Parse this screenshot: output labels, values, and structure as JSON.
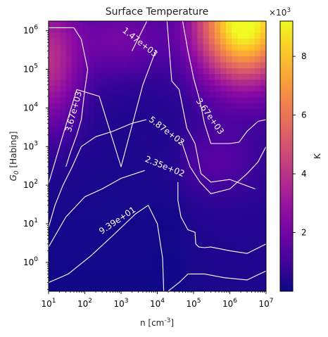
{
  "chart_data": {
    "type": "heatmap",
    "title": "Surface Temperature",
    "xlabel": "n [cm$^{-3}$]",
    "ylabel": "$G_0$ [Habing]",
    "x_scale": "log",
    "y_scale": "log",
    "xlim": [
      10,
      10000000
    ],
    "ylim": [
      0.178,
      1780000
    ],
    "x_ticks": [
      {
        "value": 10,
        "base": "10",
        "exp": "1"
      },
      {
        "value": 100,
        "base": "10",
        "exp": "2"
      },
      {
        "value": 1000,
        "base": "10",
        "exp": "3"
      },
      {
        "value": 10000,
        "base": "10",
        "exp": "4"
      },
      {
        "value": 100000,
        "base": "10",
        "exp": "5"
      },
      {
        "value": 1000000,
        "base": "10",
        "exp": "6"
      },
      {
        "value": 10000000,
        "base": "10",
        "exp": "7"
      }
    ],
    "y_ticks": [
      {
        "value": 1,
        "base": "10",
        "exp": "0"
      },
      {
        "value": 10,
        "base": "10",
        "exp": "1"
      },
      {
        "value": 100,
        "base": "10",
        "exp": "2"
      },
      {
        "value": 1000,
        "base": "10",
        "exp": "3"
      },
      {
        "value": 10000,
        "base": "10",
        "exp": "4"
      },
      {
        "value": 100000,
        "base": "10",
        "exp": "5"
      },
      {
        "value": 1000000,
        "base": "10",
        "exp": "6"
      }
    ],
    "colormap": "plasma",
    "colorbar": {
      "label": "K",
      "multiplier_base": "×10",
      "multiplier_exp": "3",
      "range": [
        0,
        9200
      ],
      "tick_values": [
        2000,
        4000,
        6000,
        8000
      ],
      "tick_labels": [
        "2",
        "4",
        "6",
        "8"
      ]
    },
    "contours": [
      {
        "level": 93.9,
        "label": "9.39e+01",
        "label_at": [
          800,
          12
        ],
        "label_angle": -34,
        "x": [
          10,
          35,
          150,
          600,
          2500,
          5600,
          10000,
          14000,
          15000
        ],
        "y": [
          0.3,
          0.5,
          1.5,
          5,
          18,
          30,
          10,
          1.3,
          0.18
        ]
      },
      {
        "level": 235,
        "label": "2.35e+02",
        "label_at": [
          16000,
          300
        ],
        "label_angle": 22,
        "x": [
          10,
          30,
          100,
          300,
          1000,
          4500
        ],
        "y": [
          2.5,
          15,
          50,
          80,
          150,
          240
        ]
      },
      {
        "level": 235,
        "label": "",
        "label_at": null,
        "label_angle": 0,
        "x": [
          37000,
          37000,
          45000,
          70000,
          110000,
          115000,
          140000,
          200000,
          300000,
          1000000,
          3000000,
          10000000
        ],
        "y": [
          120,
          40,
          15,
          7,
          6,
          3,
          2.5,
          2.4,
          2.5,
          2,
          1.7,
          3
        ]
      },
      {
        "level": 235,
        "label": "",
        "label_at": null,
        "label_angle": 0,
        "x": [
          20000,
          40000,
          70000,
          200000,
          700000,
          3000000,
          10000000
        ],
        "y": [
          0.18,
          0.3,
          0.5,
          0.5,
          0.4,
          0.35,
          0.6
        ]
      },
      {
        "level": 587,
        "label": "5.87e+02",
        "label_at": [
          18000,
          2500
        ],
        "label_angle": 37,
        "x": [
          10,
          15,
          25,
          45,
          80,
          200,
          600,
          2000,
          5000
        ],
        "y": [
          8,
          30,
          100,
          300,
          1000,
          1800,
          2500,
          4000,
          5000
        ]
      },
      {
        "level": 587,
        "label": "",
        "label_at": null,
        "label_angle": 0,
        "x": [
          45000,
          80000,
          150000,
          300000,
          1000000,
          3000000,
          6000000,
          10000000
        ],
        "y": [
          1500,
          300,
          120,
          60,
          80,
          200,
          400,
          1000
        ]
      },
      {
        "level": 1470,
        "label": "1.47e+03",
        "label_at": [
          3300,
          500000
        ],
        "label_angle": 38,
        "x": [
          10,
          25,
          60,
          250,
          1000,
          4000,
          9000
        ],
        "y": [
          110,
          2000,
          30000,
          20000,
          300,
          40000,
          300000
        ]
      },
      {
        "level": 1470,
        "label": "",
        "label_at": null,
        "label_angle": 0,
        "x": [
          2000,
          9000,
          16000,
          25000,
          40000,
          65000,
          110000,
          160000,
          300000,
          1000000,
          2000000,
          5000000
        ],
        "y": [
          300000,
          5000000,
          10000000,
          50000,
          30000,
          3000,
          1200,
          200,
          120,
          140,
          110,
          80
        ]
      },
      {
        "level": 3670,
        "label": "3.67e+03",
        "label_at": [
          50,
          8000
        ],
        "label_angle": -75,
        "x": [
          10,
          50,
          80,
          120,
          100,
          80,
          60,
          40,
          30
        ],
        "y": [
          1200000,
          1200000,
          600000,
          100000,
          30000,
          5000,
          2000,
          700,
          300
        ]
      },
      {
        "level": 3670,
        "label": "3.67e+03",
        "label_at": [
          280000,
          6000
        ],
        "label_angle": 55,
        "x": [
          50000,
          70000,
          100000,
          150000,
          200000,
          300000,
          1000000,
          1800000,
          3000000,
          6000000,
          10000000
        ],
        "y": [
          1780000,
          300000,
          60000,
          15000,
          4000,
          1200,
          1200,
          1300,
          2500,
          4500,
          5000
        ]
      }
    ]
  }
}
